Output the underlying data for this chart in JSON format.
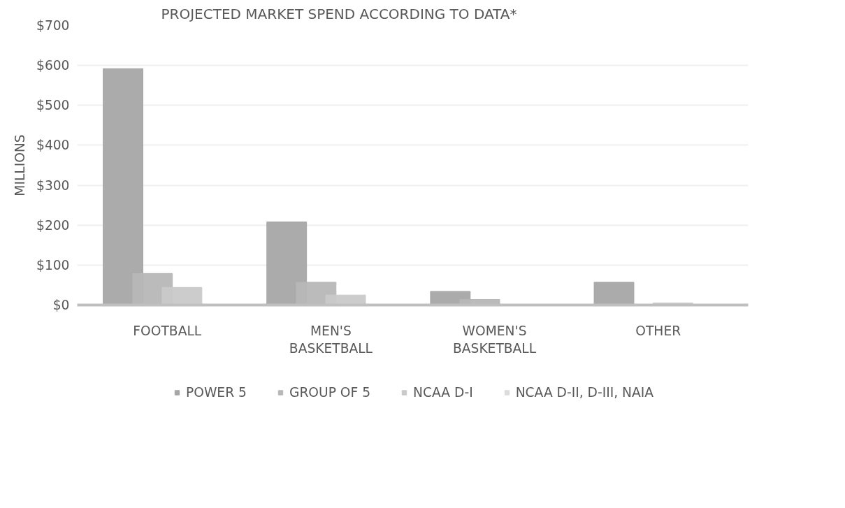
{
  "chart_data": {
    "type": "bar",
    "title": "PROJECTED MARKET SPEND ACCORDING TO DATA*",
    "ylabel": "MILLIONS",
    "categories": [
      "FOOTBALL",
      "MEN'S BASKETBALL",
      "WOMEN'S BASKETBALL",
      "OTHER"
    ],
    "series": [
      {
        "name": "POWER 5",
        "color": "#a6a6a6",
        "values": [
          592,
          208,
          34,
          57
        ]
      },
      {
        "name": "GROUP OF 5",
        "color": "#b7b7b7",
        "values": [
          79,
          57,
          14,
          0
        ]
      },
      {
        "name": "NCAA D-I",
        "color": "#c9c9c9",
        "values": [
          44,
          25,
          0,
          5
        ]
      },
      {
        "name": "NCAA D-II, D-III, NAIA",
        "color": "#dcdcdc",
        "values": [
          0,
          0,
          0,
          0
        ]
      }
    ],
    "ylim": [
      0,
      700
    ],
    "yticks": [
      {
        "value": 0,
        "label": "$0"
      },
      {
        "value": 100,
        "label": "$100"
      },
      {
        "value": 200,
        "label": "$200"
      },
      {
        "value": 300,
        "label": "$300"
      },
      {
        "value": 400,
        "label": "$400"
      },
      {
        "value": 500,
        "label": "$500"
      },
      {
        "value": 600,
        "label": "$600"
      },
      {
        "value": 700,
        "label": "$700"
      }
    ],
    "grid": "y",
    "legend": "bottom"
  }
}
